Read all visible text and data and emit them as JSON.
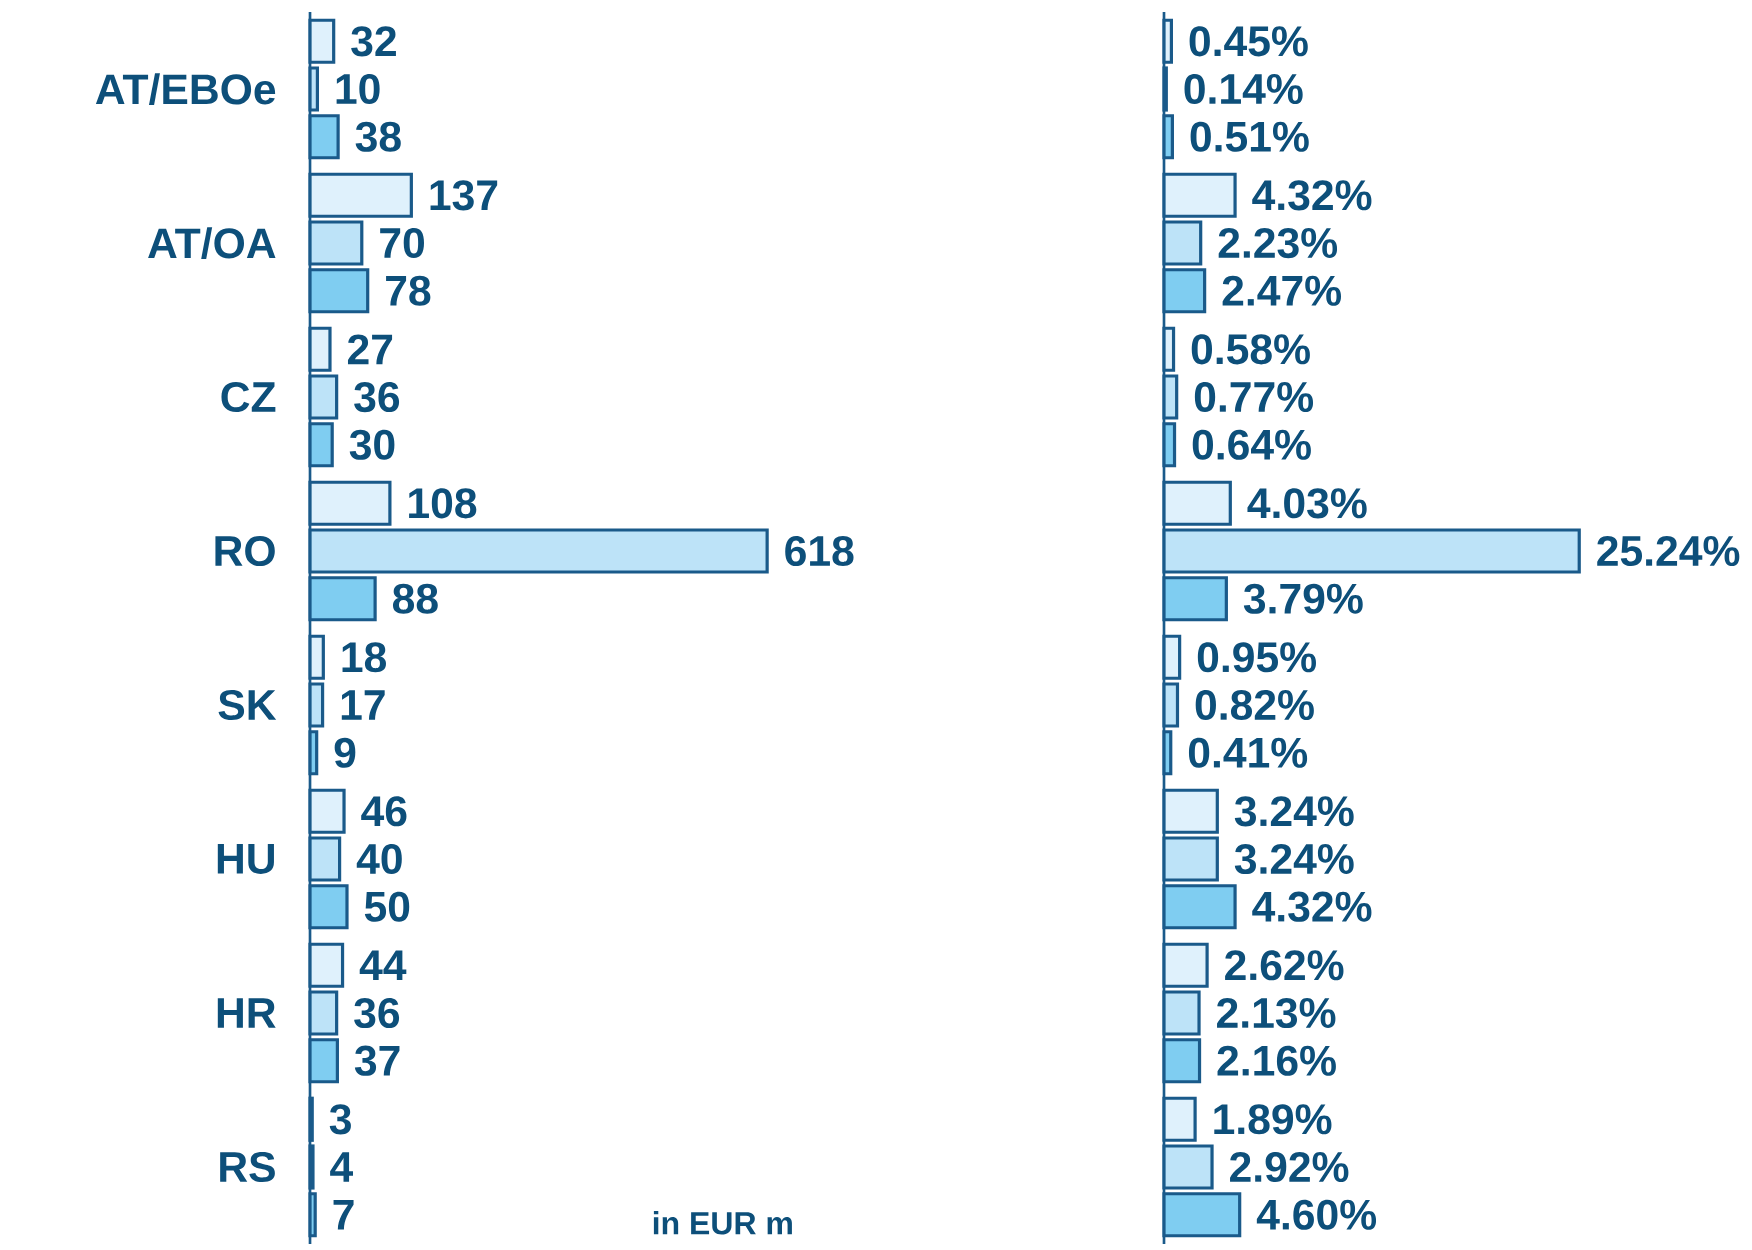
{
  "chart_data": [
    {
      "type": "bar",
      "orientation": "horizontal",
      "categories": [
        "AT/EBOe",
        "AT/OA",
        "CZ",
        "RO",
        "SK",
        "HU",
        "HR",
        "RS"
      ],
      "tick_labels": "y",
      "data_labels": true,
      "annotations": [
        "in EUR m"
      ],
      "series": [
        {
          "color": "#dff1fc",
          "values": [
            32,
            137,
            27,
            108,
            18,
            46,
            44,
            3
          ]
        },
        {
          "color": "#bde3f8",
          "values": [
            10,
            70,
            36,
            618,
            17,
            40,
            36,
            4
          ]
        },
        {
          "color": "#7fcdf1",
          "values": [
            38,
            78,
            30,
            88,
            9,
            50,
            37,
            7
          ]
        }
      ]
    },
    {
      "type": "bar",
      "orientation": "horizontal",
      "tick_labels": false,
      "series": [
        {
          "color": "#dff1fc",
          "values": [
            0.45,
            4.32,
            0.58,
            4.03,
            0.95,
            3.24,
            2.62,
            1.89
          ],
          "value_labels": [
            "0.45%",
            "4.32%",
            "0.58%",
            "4.03%",
            "0.95%",
            "3.24%",
            "2.62%",
            "1.89%"
          ]
        },
        {
          "color": "#bde3f8",
          "values": [
            0.14,
            2.23,
            0.77,
            25.24,
            0.82,
            3.24,
            2.13,
            2.92
          ],
          "value_labels": [
            "0.14%",
            "2.23%",
            "0.77%",
            "25.24%",
            "0.82%",
            "3.24%",
            "2.13%",
            "2.92%"
          ]
        },
        {
          "color": "#7fcdf1",
          "values": [
            0.51,
            2.47,
            0.64,
            3.79,
            0.41,
            4.32,
            2.16,
            4.6
          ],
          "value_labels": [
            "0.51%",
            "2.47%",
            "0.64%",
            "3.79%",
            "0.41%",
            "4.32%",
            "2.16%",
            "4.60%"
          ]
        }
      ]
    }
  ]
}
